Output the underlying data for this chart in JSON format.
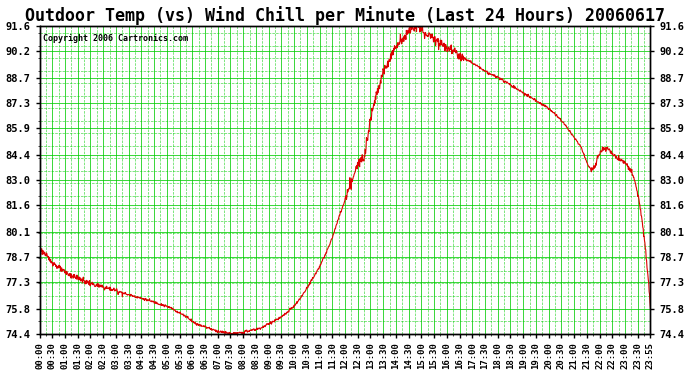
{
  "title": "Outdoor Temp (vs) Wind Chill per Minute (Last 24 Hours) 20060617",
  "copyright": "Copyright 2006 Cartronics.com",
  "title_fontsize": 12,
  "background_color": "#ffffff",
  "plot_bg_color": "#ffffff",
  "line_color": "#dd0000",
  "line_width": 0.8,
  "grid_color": "#00cc00",
  "ylim": [
    74.4,
    91.6
  ],
  "yticks": [
    74.4,
    75.8,
    77.3,
    78.7,
    80.1,
    81.6,
    83.0,
    84.4,
    85.9,
    87.3,
    88.7,
    90.2,
    91.6
  ],
  "xlabel_fontsize": 6.5,
  "ylabel_fontsize": 7.5,
  "xtick_labels": [
    "00:00",
    "00:30",
    "01:00",
    "01:30",
    "02:00",
    "02:30",
    "03:00",
    "03:30",
    "04:00",
    "04:30",
    "05:00",
    "05:30",
    "06:00",
    "06:30",
    "07:00",
    "07:30",
    "08:00",
    "08:30",
    "09:00",
    "09:30",
    "10:00",
    "10:30",
    "11:00",
    "11:30",
    "12:00",
    "12:30",
    "13:00",
    "13:30",
    "14:00",
    "14:30",
    "15:00",
    "15:30",
    "16:00",
    "16:30",
    "17:00",
    "17:30",
    "18:00",
    "18:30",
    "19:00",
    "19:30",
    "20:00",
    "20:30",
    "21:00",
    "21:30",
    "22:00",
    "22:30",
    "23:00",
    "23:30",
    "23:55"
  ],
  "ctrl_x": [
    0,
    30,
    60,
    90,
    120,
    150,
    180,
    210,
    240,
    270,
    300,
    320,
    335,
    350,
    360,
    375,
    390,
    410,
    430,
    450,
    470,
    490,
    510,
    540,
    570,
    600,
    630,
    660,
    690,
    710,
    730,
    750,
    770,
    780,
    790,
    800,
    810,
    820,
    830,
    840,
    850,
    860,
    870,
    880,
    900,
    920,
    940,
    960,
    980,
    1000,
    1020,
    1040,
    1060,
    1080,
    1100,
    1120,
    1140,
    1160,
    1180,
    1200,
    1220,
    1240,
    1260,
    1280,
    1300,
    1320,
    1360,
    1400,
    1439
  ],
  "ctrl_y": [
    79.2,
    78.4,
    77.8,
    77.5,
    77.2,
    77.0,
    76.8,
    76.6,
    76.4,
    76.2,
    76.0,
    75.8,
    75.6,
    75.4,
    75.2,
    75.0,
    74.9,
    74.7,
    74.6,
    74.5,
    74.5,
    74.6,
    74.7,
    75.0,
    75.4,
    76.0,
    77.0,
    78.2,
    79.8,
    81.2,
    82.5,
    83.8,
    85.0,
    86.5,
    87.5,
    88.3,
    89.0,
    89.5,
    90.0,
    90.4,
    90.7,
    91.0,
    91.2,
    91.5,
    91.3,
    91.0,
    90.7,
    90.4,
    90.1,
    89.8,
    89.5,
    89.2,
    88.9,
    88.7,
    88.4,
    88.1,
    87.8,
    87.5,
    87.2,
    86.9,
    86.5,
    86.0,
    85.3,
    84.5,
    83.5,
    84.4,
    84.2,
    83.0,
    75.8
  ],
  "noise_seed": 123,
  "figsize": [
    6.9,
    3.75
  ],
  "dpi": 100
}
